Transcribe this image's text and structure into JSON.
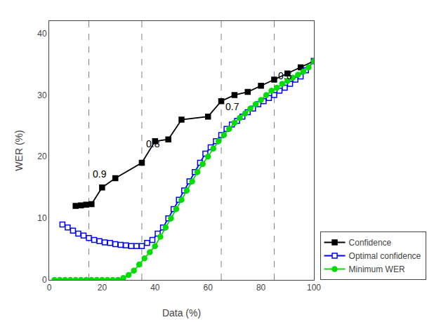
{
  "chart_data": {
    "type": "line",
    "xlabel": "Data (%)",
    "ylabel": "WER (%)",
    "xlim": [
      0,
      100
    ],
    "ylim": [
      0,
      42
    ],
    "xticks": [
      0,
      20,
      40,
      60,
      80,
      100
    ],
    "yticks": [
      0,
      10,
      20,
      30,
      40
    ],
    "grid": false,
    "legend": "lower right",
    "series": [
      {
        "name": "Confidence",
        "color": "#000000",
        "marker": "square",
        "line_style": "solid",
        "x": [
          10,
          12,
          14,
          16,
          20,
          25,
          35,
          40,
          45,
          50,
          60,
          65,
          70,
          75,
          80,
          85,
          90,
          95,
          100
        ],
        "values": [
          12,
          12.1,
          12.2,
          12.3,
          15.0,
          16.5,
          19.0,
          22.5,
          22.8,
          26.0,
          26.5,
          29.0,
          30.0,
          30.5,
          31.5,
          32.5,
          33.5,
          34.5,
          35.5
        ]
      },
      {
        "name": "Optimal confidence",
        "color": "#0000ff",
        "marker": "square-open",
        "line_style": "solid",
        "x": [
          5,
          7,
          9,
          11,
          13,
          15,
          17,
          19,
          21,
          23,
          25,
          27,
          29,
          31,
          33,
          35,
          37,
          39,
          41,
          43,
          45,
          47,
          49,
          51,
          53,
          55,
          57,
          59,
          61,
          63,
          65,
          67,
          69,
          71,
          73,
          75,
          77,
          79,
          81,
          83,
          85,
          87,
          89,
          91,
          93,
          95,
          97,
          100
        ],
        "values": [
          9.0,
          8.5,
          8.0,
          7.5,
          7.2,
          6.8,
          6.5,
          6.3,
          6.1,
          6.0,
          5.8,
          5.7,
          5.6,
          5.5,
          5.5,
          5.5,
          6.0,
          6.5,
          7.5,
          8.5,
          10.0,
          11.5,
          13.0,
          14.5,
          16.0,
          17.5,
          19.0,
          20.5,
          21.5,
          22.5,
          23.5,
          24.5,
          25.2,
          25.8,
          26.5,
          27.2,
          27.8,
          28.5,
          29.0,
          29.5,
          30.0,
          30.7,
          31.2,
          31.8,
          32.5,
          33.0,
          34.0,
          35.5
        ]
      },
      {
        "name": "Minimum WER",
        "color": "#00dd00",
        "marker": "circle",
        "line_style": "solid",
        "x": [
          2,
          4,
          6,
          8,
          10,
          12,
          14,
          16,
          18,
          20,
          22,
          24,
          26,
          28,
          30,
          32,
          34,
          36,
          38,
          40,
          42,
          44,
          46,
          48,
          50,
          52,
          54,
          56,
          58,
          60,
          62,
          64,
          66,
          68,
          70,
          72,
          74,
          76,
          78,
          80,
          82,
          84,
          86,
          88,
          90,
          92,
          94,
          96,
          98,
          100
        ],
        "values": [
          0.0,
          0.0,
          0.0,
          0.0,
          0.0,
          0.0,
          0.0,
          0.0,
          0.0,
          0.0,
          0.0,
          0.0,
          0.0,
          0.3,
          0.8,
          1.5,
          2.5,
          3.5,
          4.5,
          5.5,
          7.0,
          8.5,
          10.0,
          11.5,
          13.0,
          14.5,
          16.0,
          17.5,
          18.8,
          20.0,
          21.3,
          22.5,
          23.5,
          24.5,
          25.5,
          26.3,
          27.0,
          27.8,
          28.5,
          29.2,
          30.0,
          30.7,
          31.2,
          31.8,
          32.3,
          32.8,
          33.3,
          33.8,
          34.5,
          35.5
        ]
      }
    ],
    "vlines": {
      "values": [
        15,
        35,
        65,
        85
      ],
      "color": "#808080",
      "line_style": "dashed"
    },
    "annotations": [
      {
        "x": 16,
        "y": 16,
        "text": "0.9"
      },
      {
        "x": 36,
        "y": 21,
        "text": "0.8"
      },
      {
        "x": 66,
        "y": 27,
        "text": "0.7"
      },
      {
        "x": 86,
        "y": 32,
        "text": "0.6"
      }
    ]
  }
}
